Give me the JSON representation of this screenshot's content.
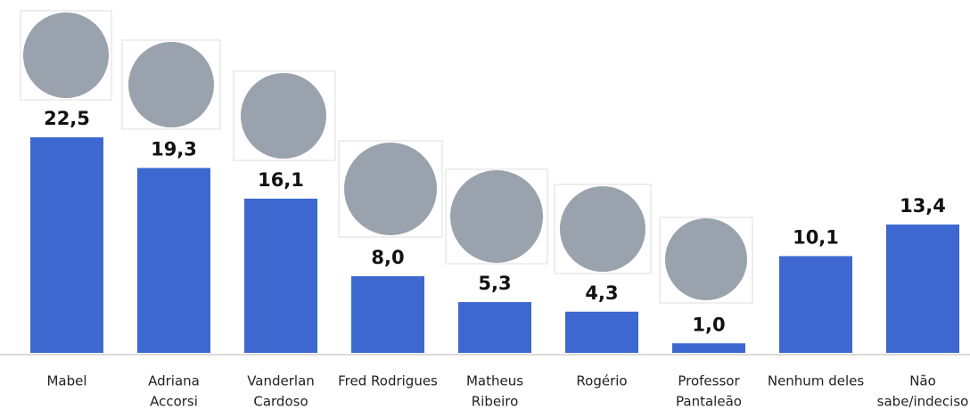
{
  "chart_data": {
    "type": "bar",
    "categories": [
      [
        "Mabel"
      ],
      [
        "Adriana",
        "Accorsi"
      ],
      [
        "Vanderlan",
        "Cardoso"
      ],
      [
        "Fred Rodrigues"
      ],
      [
        "Matheus",
        "Ribeiro"
      ],
      [
        "Rogério"
      ],
      [
        "Professor",
        "Pantaleão"
      ],
      [
        "Nenhum deles"
      ],
      [
        "Não",
        "sabe/indeciso"
      ]
    ],
    "values": [
      22.5,
      19.3,
      16.1,
      8.0,
      5.3,
      4.3,
      1.0,
      10.1,
      13.4
    ],
    "value_labels": [
      "22,5",
      "19,3",
      "16,1",
      "8,0",
      "5,3",
      "4,3",
      "1,0",
      "10,1",
      "13,4"
    ],
    "color": "#3d68d0"
  }
}
